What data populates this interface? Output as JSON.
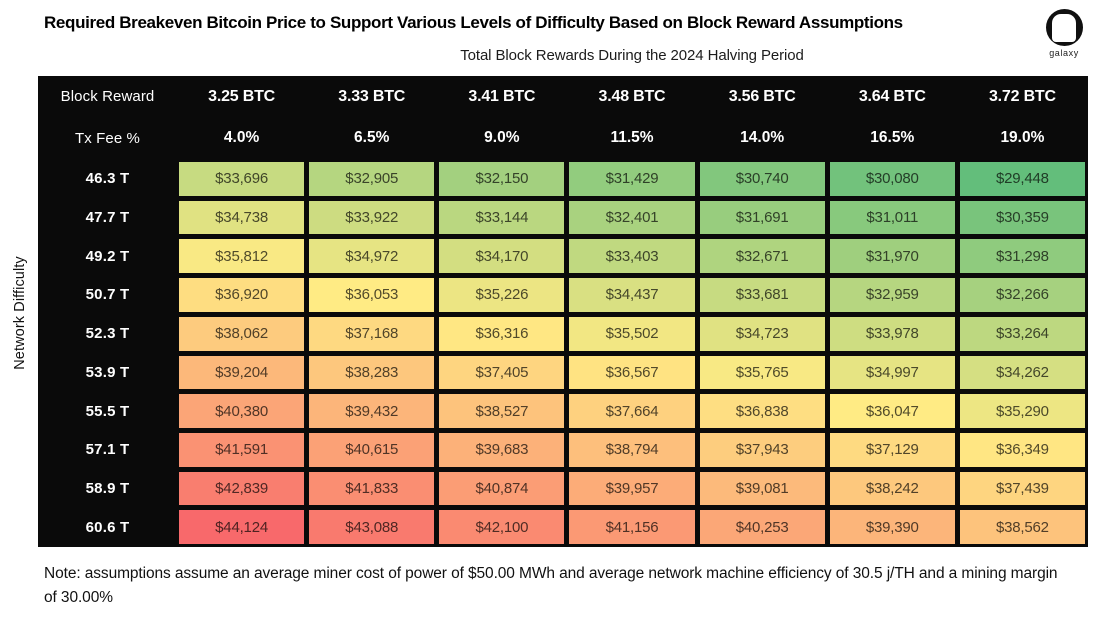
{
  "title": "Required Breakeven Bitcoin Price to Support Various Levels of Difficulty Based on Block Reward Assumptions",
  "subtitle": "Total Block Rewards During the 2024 Halving Period",
  "logo": {
    "label": "galaxy"
  },
  "note": "Note: assumptions assume an average miner cost of power of $50.00 MWh and average network machine efficiency of 30.5 j/TH and a mining margin of 30.00%",
  "chart_data": {
    "type": "heatmap",
    "title": "Required Breakeven Bitcoin Price to Support Various Levels of Difficulty Based on Block Reward Assumptions",
    "subtitle": "Total Block Rewards During the 2024 Halving Period",
    "corner": {
      "label": "Block Reward",
      "sub_label": "Tx Fee %"
    },
    "row_axis_label": "Network Difficulty",
    "columns": [
      {
        "block_reward": "3.25 BTC",
        "tx_fee": "4.0%"
      },
      {
        "block_reward": "3.33 BTC",
        "tx_fee": "6.5%"
      },
      {
        "block_reward": "3.41 BTC",
        "tx_fee": "9.0%"
      },
      {
        "block_reward": "3.48 BTC",
        "tx_fee": "11.5%"
      },
      {
        "block_reward": "3.56 BTC",
        "tx_fee": "14.0%"
      },
      {
        "block_reward": "3.64 BTC",
        "tx_fee": "16.5%"
      },
      {
        "block_reward": "3.72 BTC",
        "tx_fee": "19.0%"
      }
    ],
    "rows": [
      {
        "difficulty": "46.3 T",
        "values": [
          33696,
          32905,
          32150,
          31429,
          30740,
          30080,
          29448
        ]
      },
      {
        "difficulty": "47.7 T",
        "values": [
          34738,
          33922,
          33144,
          32401,
          31691,
          31011,
          30359
        ]
      },
      {
        "difficulty": "49.2 T",
        "values": [
          35812,
          34972,
          34170,
          33403,
          32671,
          31970,
          31298
        ]
      },
      {
        "difficulty": "50.7 T",
        "values": [
          36920,
          36053,
          35226,
          34437,
          33681,
          32959,
          32266
        ]
      },
      {
        "difficulty": "52.3 T",
        "values": [
          38062,
          37168,
          36316,
          35502,
          34723,
          33978,
          33264
        ]
      },
      {
        "difficulty": "53.9 T",
        "values": [
          39204,
          38283,
          37405,
          36567,
          35765,
          34997,
          34262
        ]
      },
      {
        "difficulty": "55.5 T",
        "values": [
          40380,
          39432,
          38527,
          37664,
          36838,
          36047,
          35290
        ]
      },
      {
        "difficulty": "57.1 T",
        "values": [
          41591,
          40615,
          39683,
          38794,
          37943,
          37129,
          36349
        ]
      },
      {
        "difficulty": "58.9 T",
        "values": [
          42839,
          41833,
          40874,
          39957,
          39081,
          38242,
          37439
        ]
      },
      {
        "difficulty": "60.6 T",
        "values": [
          44124,
          43088,
          42100,
          41156,
          40253,
          39390,
          38562
        ]
      }
    ],
    "value_prefix": "$",
    "colorscale": {
      "low": "#63BE7B",
      "mid": "#FFEB84",
      "high": "#F8696B",
      "midpoint": "median"
    }
  }
}
